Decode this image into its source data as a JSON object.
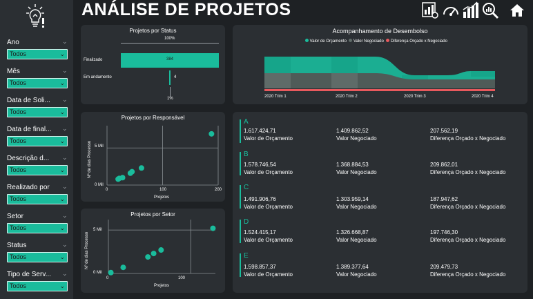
{
  "title": "ANÁLISE DE PROJETOS",
  "nav_icons": [
    "report-icon",
    "gauge-icon",
    "bar-chart-icon",
    "search-analytics-icon",
    "home-icon"
  ],
  "filters": [
    {
      "label": "Ano",
      "value": "Todos"
    },
    {
      "label": "Mês",
      "value": "Todos"
    },
    {
      "label": "Data de Soli...",
      "value": "Todos"
    },
    {
      "label": "Data de final...",
      "value": "Todos"
    },
    {
      "label": "Descrição d...",
      "value": "Todos"
    },
    {
      "label": "Realizado por",
      "value": "Todos"
    },
    {
      "label": "Setor",
      "value": "Todos"
    },
    {
      "label": "Status",
      "value": "Todos"
    },
    {
      "label": "Tipo de Serv...",
      "value": "Todos"
    }
  ],
  "status_chart": {
    "title": "Projetos por Status",
    "top_label": "100%",
    "bottom_label": "1%",
    "accent": "#1abc9c",
    "rows": [
      {
        "label": "Finalizado",
        "value": "384",
        "fraction": 1.0
      },
      {
        "label": "Em andamento",
        "value": "4",
        "fraction": 0.0104
      }
    ]
  },
  "ribbon_chart": {
    "title": "Acompanhamento de Desembolso",
    "legend": [
      {
        "label": "Valor de Orçamento",
        "color": "#1abc9c"
      },
      {
        "label": "Valor Negociado",
        "color": "#5f6b68"
      },
      {
        "label": "Diferença Orçado x Negociado",
        "color": "#e8595d"
      }
    ],
    "categories": [
      "2020 Trim 1",
      "2020 Trim 2",
      "2020 Trim 3",
      "2020 Trim 4"
    ]
  },
  "scatter_responsavel": {
    "title": "Projetos por Responsável",
    "xlabel": "Projetos",
    "ylabel": "Nº de dias Processo",
    "xticks": [
      "0",
      "100",
      "200"
    ],
    "yticks": [
      "0 Mil",
      "5 Mil"
    ]
  },
  "scatter_setor": {
    "title": "Projetos por Setor",
    "xlabel": "Projetos",
    "ylabel": "Nº de dias Processo",
    "xticks": [
      "0",
      "100"
    ],
    "yticks": [
      "0 Mil",
      "5 Mil"
    ]
  },
  "kpis": [
    {
      "letter": "A",
      "orcamento": "1.617.424,71",
      "negociado": "1.409.862,52",
      "diferenca": "207.562,19"
    },
    {
      "letter": "B",
      "orcamento": "1.578.746,54",
      "negociado": "1.368.884,53",
      "diferenca": "209.862,01"
    },
    {
      "letter": "C",
      "orcamento": "1.491.906,76",
      "negociado": "1.303.959,14",
      "diferenca": "187.947,62"
    },
    {
      "letter": "D",
      "orcamento": "1.524.415,17",
      "negociado": "1.326.668,87",
      "diferenca": "197.746,30"
    },
    {
      "letter": "E",
      "orcamento": "1.598.857,37",
      "negociado": "1.389.377,64",
      "diferenca": "209.479,73"
    }
  ],
  "kpi_labels": {
    "orcamento": "Valor de Orçamento",
    "negociado": "Valor Negociado",
    "diferenca": "Diferença Orçado x Negociado"
  },
  "chart_data": [
    {
      "type": "bar",
      "title": "Projetos por Status",
      "categories": [
        "Finalizado",
        "Em andamento"
      ],
      "values": [
        384,
        4
      ]
    },
    {
      "type": "area",
      "title": "Acompanhamento de Desembolso",
      "categories": [
        "2020 Trim 1",
        "2020 Trim 2",
        "2020 Trim 3",
        "2020 Trim 4"
      ],
      "series": [
        {
          "name": "Valor de Orçamento",
          "values": [
            1.0,
            1.0,
            0.45,
            0.8
          ]
        },
        {
          "name": "Valor Negociado",
          "values": [
            0.9,
            0.9,
            0.4,
            0.7
          ]
        },
        {
          "name": "Diferença Orçado x Negociado",
          "values": [
            0.1,
            0.1,
            0.05,
            0.1
          ]
        }
      ]
    },
    {
      "type": "scatter",
      "title": "Projetos por Responsável",
      "xlabel": "Projetos",
      "ylabel": "Nº de dias Processo",
      "xlim": [
        0,
        200
      ],
      "ylim": [
        0,
        8000
      ],
      "points": [
        [
          20,
          800
        ],
        [
          22,
          900
        ],
        [
          28,
          1000
        ],
        [
          42,
          1600
        ],
        [
          45,
          1800
        ],
        [
          62,
          2300
        ],
        [
          188,
          6900
        ]
      ]
    },
    {
      "type": "scatter",
      "title": "Projetos por Setor",
      "xlabel": "Projetos",
      "ylabel": "Nº de dias Processo",
      "xlim": [
        0,
        130
      ],
      "ylim": [
        0,
        6200
      ],
      "points": [
        [
          3,
          100
        ],
        [
          18,
          700
        ],
        [
          48,
          1900
        ],
        [
          55,
          2300
        ],
        [
          64,
          2700
        ],
        [
          127,
          5200
        ]
      ]
    }
  ]
}
